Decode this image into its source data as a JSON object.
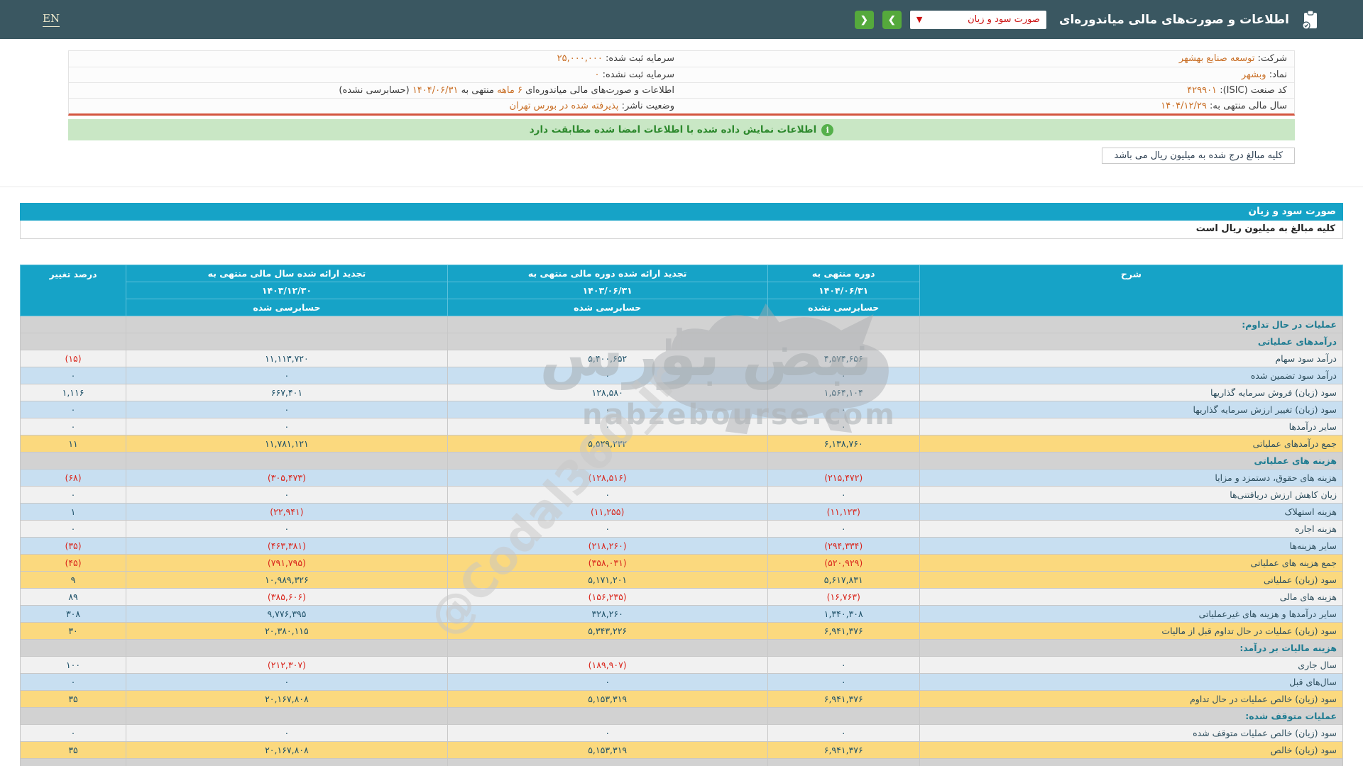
{
  "topbar": {
    "en_label": "EN",
    "title": "اطلاعات و صورت‌های مالی میاندوره‌ای",
    "dropdown_value": "صورت سود و زیان",
    "dropdown_caret": "▼",
    "prev_label": "❮",
    "next_label": "❯"
  },
  "company_info": {
    "rows": [
      {
        "right_label": "شرکت:",
        "right_value": "توسعه صنایع بهشهر",
        "left_label": "سرمایه ثبت شده:",
        "left_value": "۲۵,۰۰۰,۰۰۰"
      },
      {
        "right_label": "نماد:",
        "right_value": "وبشهر",
        "left_label": "سرمایه ثبت نشده:",
        "left_value": "۰"
      },
      {
        "right_label": "کد صنعت (ISIC):",
        "right_value": "۴۲۹۹۰۱",
        "left_label": "اطلاعات و صورت‌های مالی میاندوره‌ای",
        "left_value": "۶ ماهه",
        "left_label2": "منتهی به",
        "left_value2": "۱۴۰۴/۰۶/۳۱",
        "left_label3": "(حسابرسی نشده)"
      },
      {
        "right_label": "سال مالی منتهی به:",
        "right_value": "۱۴۰۴/۱۲/۲۹",
        "left_label": "وضعیت ناشر:",
        "left_value": "پذیرفته شده در بورس تهران"
      }
    ]
  },
  "notice": {
    "text": "اطلاعات نمایش داده شده با اطلاعات امضا شده مطابقت دارد",
    "icon": "i"
  },
  "units_box": "کلیه مبالغ درج شده به میلیون ریال می باشد",
  "statement": {
    "title": "صورت سود و زیان",
    "units_note": "کلیه مبالغ به میلیون ریال است",
    "col_desc": "شرح",
    "col_pct": "درصد تغییر",
    "periods": [
      {
        "line1": "دوره منتهی به",
        "line2": "۱۴۰۴/۰۶/۳۱",
        "line3": "حسابرسی نشده"
      },
      {
        "line1": "تجدید ارائه شده دوره مالی منتهی به",
        "line2": "۱۴۰۳/۰۶/۳۱",
        "line3": "حسابرسی شده"
      },
      {
        "line1": "تجدید ارائه شده سال مالی منتهی به",
        "line2": "۱۴۰۳/۱۲/۳۰",
        "line3": "حسابرسی شده"
      }
    ],
    "rows": [
      {
        "type": "section",
        "style": "gray",
        "label": "عملیات در حال تداوم:",
        "values": []
      },
      {
        "type": "section",
        "style": "gray",
        "label": "درآمدهای عملیاتی",
        "values": []
      },
      {
        "type": "data",
        "style": "plain",
        "label": "درآمد سود سهام",
        "values": [
          "۴,۵۷۴,۶۵۶",
          "۵,۴۰۰,۶۵۲",
          "۱۱,۱۱۳,۷۲۰",
          "(۱۵)"
        ]
      },
      {
        "type": "data",
        "style": "blue",
        "label": "درآمد سود تضمین شده",
        "values": [
          "۰",
          "۰",
          "۰",
          "۰"
        ]
      },
      {
        "type": "data",
        "style": "plain",
        "label": "سود (زیان) فروش سرمایه گذاریها",
        "values": [
          "۱,۵۶۴,۱۰۴",
          "۱۲۸,۵۸۰",
          "۶۶۷,۴۰۱",
          "۱,۱۱۶"
        ]
      },
      {
        "type": "data",
        "style": "blue",
        "label": "سود (زیان) تغییر ارزش سرمایه گذاریها",
        "values": [
          "۰",
          "۰",
          "۰",
          "۰"
        ]
      },
      {
        "type": "data",
        "style": "plain",
        "label": "سایر درآمدها",
        "values": [
          "۰",
          "۰",
          "۰",
          "۰"
        ]
      },
      {
        "type": "data",
        "style": "yellow",
        "label": "جمع درآمدهای عملیاتی",
        "values": [
          "۶,۱۳۸,۷۶۰",
          "۵,۵۲۹,۲۳۲",
          "۱۱,۷۸۱,۱۲۱",
          "۱۱"
        ]
      },
      {
        "type": "section",
        "style": "gray",
        "label": "هزینه های عملیاتی",
        "values": []
      },
      {
        "type": "data",
        "style": "blue",
        "label": "هزینه های حقوق، دستمزد و مزایا",
        "values": [
          "(۲۱۵,۴۷۲)",
          "(۱۲۸,۵۱۶)",
          "(۳۰۵,۴۷۳)",
          "(۶۸)"
        ]
      },
      {
        "type": "data",
        "style": "plain",
        "label": "زیان کاهش ارزش دریافتنی‌ها",
        "values": [
          "۰",
          "۰",
          "۰",
          "۰"
        ]
      },
      {
        "type": "data",
        "style": "blue",
        "label": "هزینه استهلاک",
        "values": [
          "(۱۱,۱۲۳)",
          "(۱۱,۲۵۵)",
          "(۲۲,۹۴۱)",
          "۱"
        ]
      },
      {
        "type": "data",
        "style": "plain",
        "label": "هزینه اجاره",
        "values": [
          "۰",
          "۰",
          "۰",
          "۰"
        ]
      },
      {
        "type": "data",
        "style": "blue",
        "label": "سایر هزینه‌ها",
        "values": [
          "(۲۹۴,۳۳۴)",
          "(۲۱۸,۲۶۰)",
          "(۴۶۳,۳۸۱)",
          "(۳۵)"
        ]
      },
      {
        "type": "data",
        "style": "yellow",
        "label": "جمع هزینه های عملیاتی",
        "values": [
          "(۵۲۰,۹۲۹)",
          "(۳۵۸,۰۳۱)",
          "(۷۹۱,۷۹۵)",
          "(۴۵)"
        ]
      },
      {
        "type": "data",
        "style": "yellow",
        "label": "سود (زیان) عملیاتی",
        "values": [
          "۵,۶۱۷,۸۳۱",
          "۵,۱۷۱,۲۰۱",
          "۱۰,۹۸۹,۳۲۶",
          "۹"
        ]
      },
      {
        "type": "data",
        "style": "plain",
        "label": "هزینه های مالی",
        "values": [
          "(۱۶,۷۶۳)",
          "(۱۵۶,۲۳۵)",
          "(۳۸۵,۶۰۶)",
          "۸۹"
        ]
      },
      {
        "type": "data",
        "style": "blue",
        "label": "سایر درآمدها و هزینه های غیرعملیاتی",
        "values": [
          "۱,۳۴۰,۳۰۸",
          "۳۲۸,۲۶۰",
          "۹,۷۷۶,۳۹۵",
          "۳۰۸"
        ]
      },
      {
        "type": "data",
        "style": "yellow",
        "label": "سود (زیان) عملیات در حال تداوم قبل از مالیات",
        "values": [
          "۶,۹۴۱,۳۷۶",
          "۵,۳۴۳,۲۲۶",
          "۲۰,۳۸۰,۱۱۵",
          "۳۰"
        ]
      },
      {
        "type": "section",
        "style": "gray",
        "label": "هزینه مالیات بر درآمد:",
        "values": []
      },
      {
        "type": "data",
        "style": "plain",
        "label": "سال جاری",
        "values": [
          "۰",
          "(۱۸۹,۹۰۷)",
          "(۲۱۲,۳۰۷)",
          "۱۰۰"
        ]
      },
      {
        "type": "data",
        "style": "blue",
        "label": "سال‌های قبل",
        "values": [
          "۰",
          "۰",
          "۰",
          "۰"
        ]
      },
      {
        "type": "data",
        "style": "yellow",
        "label": "سود (زیان) خالص عملیات در حال تداوم",
        "values": [
          "۶,۹۴۱,۳۷۶",
          "۵,۱۵۳,۳۱۹",
          "۲۰,۱۶۷,۸۰۸",
          "۳۵"
        ]
      },
      {
        "type": "section",
        "style": "gray",
        "label": "عملیات متوقف شده:",
        "values": []
      },
      {
        "type": "data",
        "style": "plain",
        "label": "سود (زیان) خالص عملیات متوقف شده",
        "values": [
          "۰",
          "۰",
          "۰",
          "۰"
        ]
      },
      {
        "type": "data",
        "style": "yellow",
        "label": "سود (زیان) خالص",
        "values": [
          "۶,۹۴۱,۳۷۶",
          "۵,۱۵۳,۳۱۹",
          "۲۰,۱۶۷,۸۰۸",
          "۳۵"
        ]
      },
      {
        "type": "section",
        "style": "gray",
        "label": "",
        "values": []
      }
    ]
  },
  "watermark": {
    "brand_fa": "نبض بورس",
    "domain": "nabzebourse.com",
    "handle": "@Codal360_ir"
  }
}
